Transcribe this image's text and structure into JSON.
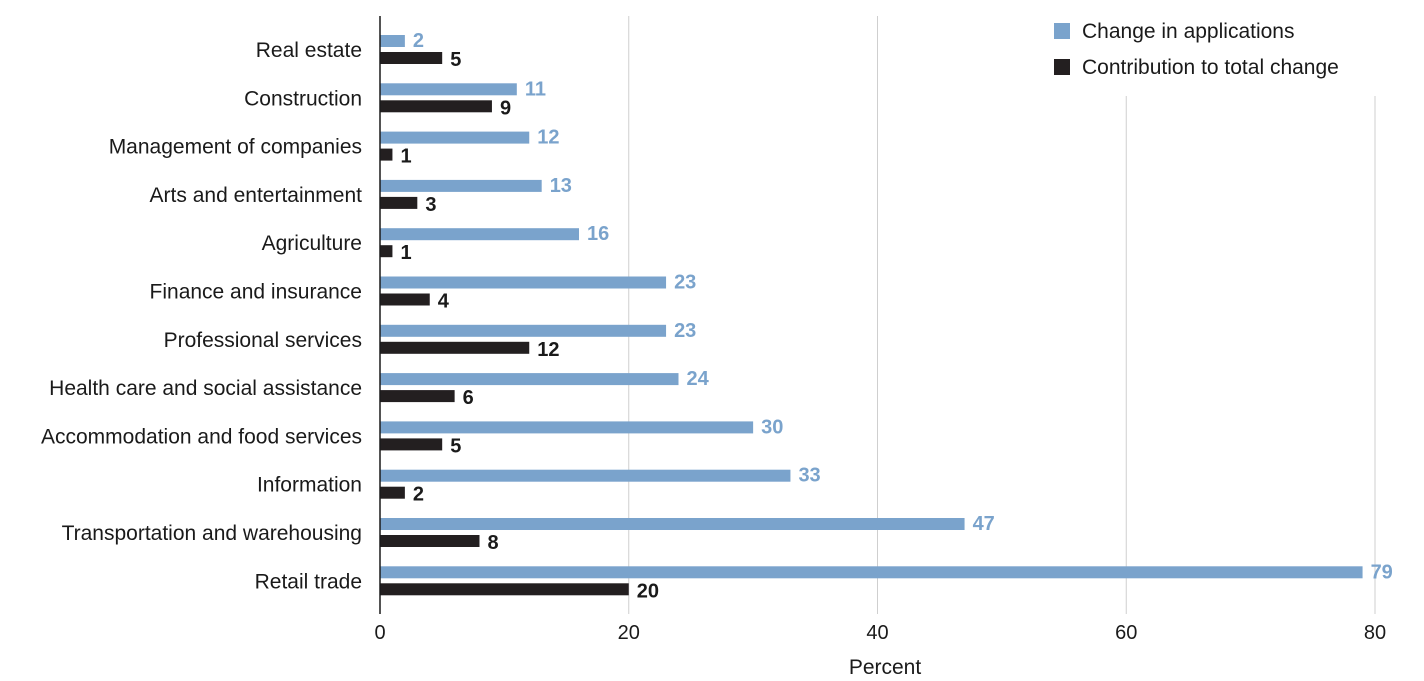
{
  "chart_data": {
    "type": "bar",
    "orientation": "horizontal",
    "categories": [
      "Real estate",
      "Construction",
      "Management of companies",
      "Arts and entertainment",
      "Agriculture",
      "Finance and insurance",
      "Professional services",
      "Health  care and social assistance",
      "Accommodation and food services",
      "Information",
      "Transportation and warehousing",
      "Retail trade"
    ],
    "series": [
      {
        "name": "Change in applications",
        "color": "#7aa3cc",
        "values": [
          2,
          11,
          12,
          13,
          16,
          23,
          23,
          24,
          30,
          33,
          47,
          79
        ],
        "value_labels": [
          "2",
          "11",
          "12",
          "13",
          "16",
          "23",
          "23",
          "24",
          "30",
          "33",
          "47",
          "79"
        ]
      },
      {
        "name": "Contribution to total change",
        "color": "#231f20",
        "values": [
          5,
          9,
          1,
          3,
          1,
          4,
          12,
          6,
          5,
          2,
          8,
          20
        ],
        "value_labels": [
          "5",
          "9",
          "1",
          "3",
          "1",
          "4",
          "12",
          "6",
          "5",
          "2",
          "8",
          "20"
        ]
      }
    ],
    "xlabel": "Percent",
    "ylabel": "",
    "xlim": [
      0,
      80
    ],
    "xticks": [
      "0",
      "20",
      "40",
      "60",
      "80"
    ],
    "grid": "vertical",
    "legend_position": "top-right"
  }
}
